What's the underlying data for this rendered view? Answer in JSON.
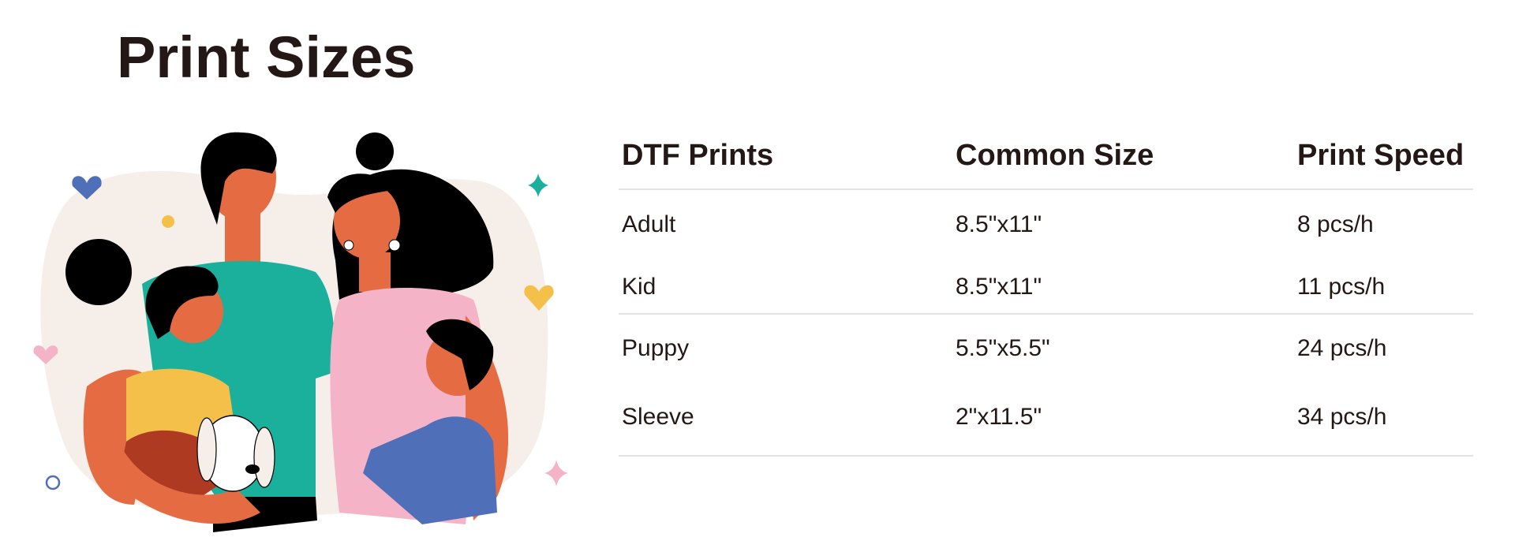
{
  "title": "Print Sizes",
  "table": {
    "headers": [
      "DTF Prints",
      "Common Size",
      "Print Speed"
    ],
    "rows": [
      [
        "Adult",
        "8.5\"x11\"",
        "8 pcs/h"
      ],
      [
        "Kid",
        "8.5\"x11\"",
        "11 pcs/h"
      ],
      [
        "Puppy",
        "5.5\"x5.5\"",
        "24 pcs/h"
      ],
      [
        "Sleeve",
        "2\"x11.5\"",
        "34 pcs/h"
      ]
    ]
  },
  "colors": {
    "text": "#231815",
    "divider": "#e3e3e3",
    "teal": "#1bb09c",
    "pink": "#f5b3c7",
    "yellow": "#f5c04a",
    "blue": "#4f6fb8",
    "skin": "#e56c42"
  }
}
